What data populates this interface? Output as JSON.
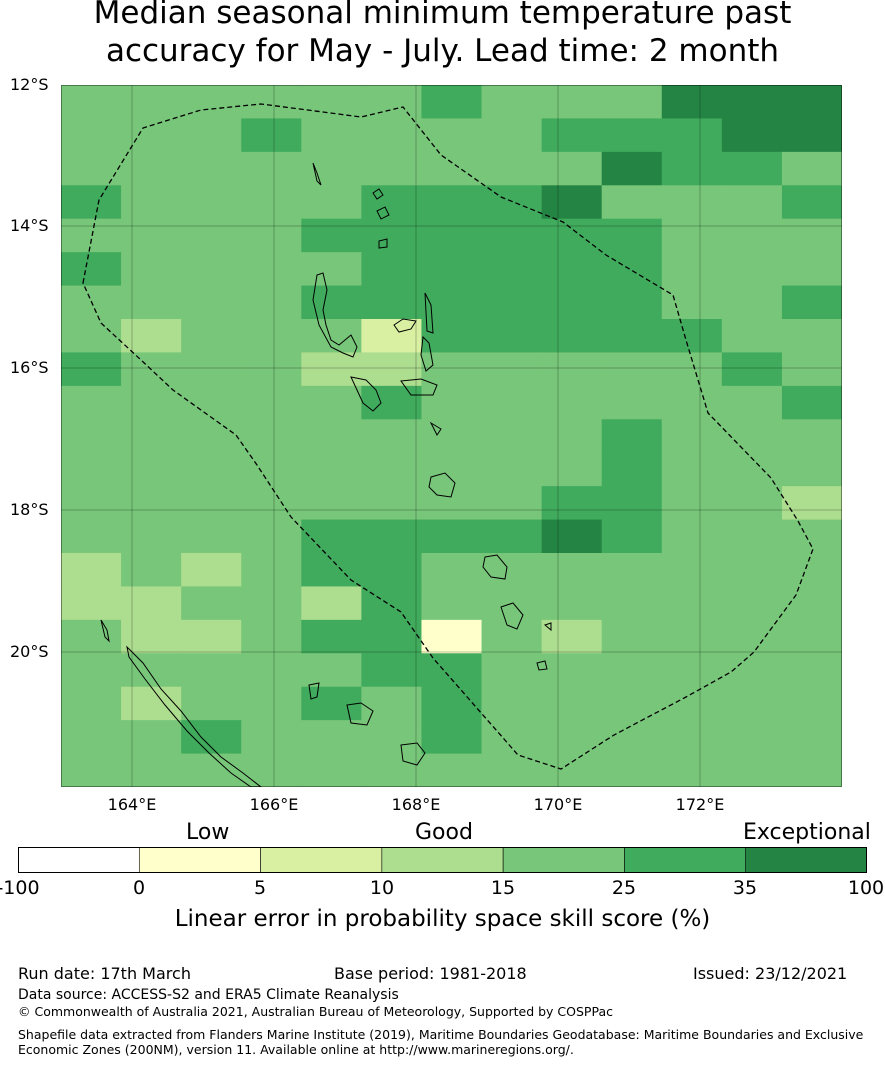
{
  "title_line1": "Median seasonal minimum temperature past",
  "title_line2": "accuracy for May - July. Lead time: 2 month",
  "lat_labels": [
    "12°S",
    "14°S",
    "16°S",
    "18°S",
    "20°S"
  ],
  "lon_labels": [
    "164°E",
    "166°E",
    "168°E",
    "170°E",
    "172°E"
  ],
  "colorbar": {
    "categories": [
      "Low",
      "Good",
      "Exceptional"
    ],
    "ticks": [
      "-100",
      "0",
      "5",
      "10",
      "15",
      "25",
      "35",
      "100"
    ],
    "colors": [
      "#ffffff",
      "#ffffcc",
      "#d9f0a3",
      "#addd8e",
      "#78c679",
      "#41ab5d",
      "#238443"
    ],
    "title": "Linear error in probability space skill score (%)"
  },
  "footer": {
    "run_date": "Run date: 17th March",
    "base_period": "Base period: 1981-2018",
    "issued": "Issued: 23/12/2021",
    "data_source": "Data source: ACCESS-S2 and ERA5 Climate Reanalysis",
    "copyright": "© Commonwealth of Australia 2021, Australian Bureau of Meteorology, Supported by COSPPac",
    "shapefile_line1": "Shapefile data extracted from Flanders Marine Institute (2019), Maritime Boundaries Geodatabase: Maritime Boundaries and Exclusive",
    "shapefile_line2": "Economic Zones (200NM), version 11. Available online at http://www.marineregions.org/."
  },
  "map_grid": {
    "legend": "5=#78c679 (15-25), 4=#addd8e (10-15), 3=#d9f0a3 (5-10), 6=#41ab5d (25-35), 7=#238443 (35-100)",
    "rows": [
      "5555556555777",
      "5556555566677",
      "5555555557665",
      "6555566675556",
      "5555666666555",
      "6555566666555",
      "5555666666556",
      "5455536666655",
      "6555445555565",
      "5555565555556",
      "5555555556555",
      "5555555556555",
      "5555555566554",
      "5555666676555",
      "4545665555555",
      "4455465555555",
      "5445662545555",
      "5555566555555",
      "5455656555555",
      "5565556555555",
      "5555555555555"
    ]
  }
}
